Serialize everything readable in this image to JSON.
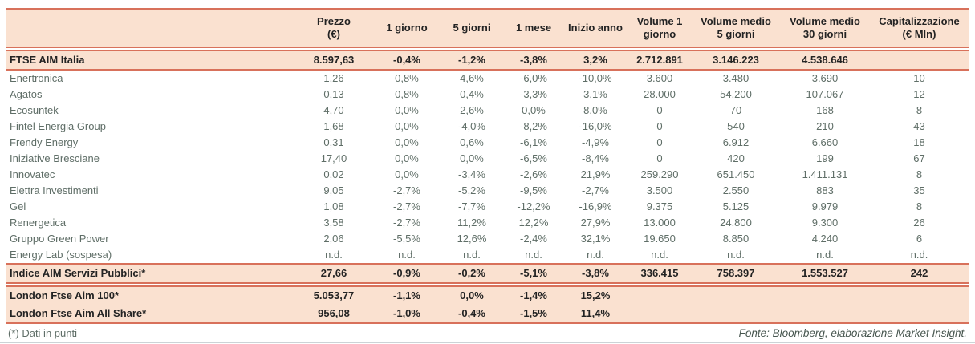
{
  "colors": {
    "band_background": "#FAE1D0",
    "rule": "#D8715B",
    "body_text": "#5F6E67",
    "bold_text": "#232323"
  },
  "table": {
    "header_cells": [
      {
        "l1": "",
        "l2": ""
      },
      {
        "l1": "Prezzo",
        "l2": "(€)"
      },
      {
        "l1": "1 giorno",
        "l2": ""
      },
      {
        "l1": "5 giorni",
        "l2": ""
      },
      {
        "l1": "1 mese",
        "l2": ""
      },
      {
        "l1": "Inizio anno",
        "l2": ""
      },
      {
        "l1": "Volume 1",
        "l2": "giorno"
      },
      {
        "l1": "Volume medio",
        "l2": "5 giorni"
      },
      {
        "l1": "Volume medio",
        "l2": "30 giorni"
      },
      {
        "l1": "Capitalizzazione",
        "l2": "(€ Mln)"
      }
    ],
    "ftse_row": {
      "name": "FTSE AIM Italia",
      "values": [
        "8.597,63",
        "-0,4%",
        "-1,2%",
        "-3,8%",
        "3,2%",
        "2.712.891",
        "3.146.223",
        "4.538.646",
        ""
      ]
    },
    "company_rows": [
      {
        "name": "Enertronica",
        "values": [
          "1,26",
          "0,8%",
          "4,6%",
          "-6,0%",
          "-10,0%",
          "3.600",
          "3.480",
          "3.690",
          "10"
        ]
      },
      {
        "name": "Agatos",
        "values": [
          "0,13",
          "0,8%",
          "0,4%",
          "-3,3%",
          "3,1%",
          "28.000",
          "54.200",
          "107.067",
          "12"
        ]
      },
      {
        "name": "Ecosuntek",
        "values": [
          "4,70",
          "0,0%",
          "2,6%",
          "0,0%",
          "8,0%",
          "0",
          "70",
          "168",
          "8"
        ]
      },
      {
        "name": "Fintel Energia Group",
        "values": [
          "1,68",
          "0,0%",
          "-4,0%",
          "-8,2%",
          "-16,0%",
          "0",
          "540",
          "210",
          "43"
        ]
      },
      {
        "name": "Frendy Energy",
        "values": [
          "0,31",
          "0,0%",
          "0,6%",
          "-6,1%",
          "-4,9%",
          "0",
          "6.912",
          "6.660",
          "18"
        ]
      },
      {
        "name": "Iniziative Bresciane",
        "values": [
          "17,40",
          "0,0%",
          "0,0%",
          "-6,5%",
          "-8,4%",
          "0",
          "420",
          "199",
          "67"
        ]
      },
      {
        "name": "Innovatec",
        "values": [
          "0,02",
          "0,0%",
          "-3,4%",
          "-2,6%",
          "21,9%",
          "259.290",
          "651.450",
          "1.411.131",
          "8"
        ]
      },
      {
        "name": "Elettra Investimenti",
        "values": [
          "9,05",
          "-2,7%",
          "-5,2%",
          "-9,5%",
          "-2,7%",
          "3.500",
          "2.550",
          "883",
          "35"
        ]
      },
      {
        "name": "Gel",
        "values": [
          "1,08",
          "-2,7%",
          "-7,7%",
          "-12,2%",
          "-16,9%",
          "9.375",
          "5.125",
          "9.979",
          "8"
        ]
      },
      {
        "name": "Renergetica",
        "values": [
          "3,58",
          "-2,7%",
          "11,2%",
          "12,2%",
          "27,9%",
          "13.000",
          "24.800",
          "9.300",
          "26"
        ]
      },
      {
        "name": "Gruppo Green Power",
        "values": [
          "2,06",
          "-5,5%",
          "12,6%",
          "-2,4%",
          "32,1%",
          "19.650",
          "8.850",
          "4.240",
          "6"
        ]
      },
      {
        "name": "Energy Lab (sospesa)",
        "values": [
          "n.d.",
          "n.d.",
          "n.d.",
          "n.d.",
          "n.d.",
          "n.d.",
          "n.d.",
          "n.d.",
          "n.d."
        ]
      }
    ],
    "servizi_row": {
      "name": "Indice AIM Servizi Pubblici*",
      "values": [
        "27,66",
        "-0,9%",
        "-0,2%",
        "-5,1%",
        "-3,8%",
        "336.415",
        "758.397",
        "1.553.527",
        "242"
      ]
    },
    "london_rows": [
      {
        "name": "London Ftse Aim 100*",
        "values": [
          "5.053,77",
          "-1,1%",
          "0,0%",
          "-1,4%",
          "15,2%",
          "",
          "",
          "",
          ""
        ]
      },
      {
        "name": "London Ftse Aim All Share*",
        "values": [
          "956,08",
          "-1,0%",
          "-0,4%",
          "-1,5%",
          "11,4%",
          "",
          "",
          "",
          ""
        ]
      }
    ]
  },
  "footer": {
    "note": "(*) Dati in punti",
    "source": "Fonte: Bloomberg, elaborazione Market Insight."
  }
}
